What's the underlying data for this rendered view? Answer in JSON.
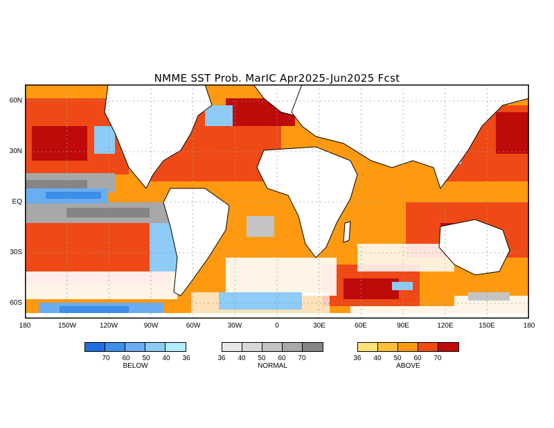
{
  "title": "NMME SST Prob. MarIC  Apr2025-Jun2025 Fcst",
  "map": {
    "lat_labels": [
      "60N",
      "30N",
      "EQ",
      "30S",
      "60S"
    ],
    "lon_labels": [
      "180",
      "150W",
      "120W",
      "90W",
      "60W",
      "30W",
      "0",
      "30E",
      "60E",
      "90E",
      "120E",
      "150E",
      "180"
    ]
  },
  "legend": {
    "below": {
      "caption": "BELOW",
      "ticks": [
        "70",
        "60",
        "50",
        "40",
        "36"
      ],
      "colors": [
        "#1f6fe0",
        "#3d8ee8",
        "#6aadf0",
        "#8ecbf7",
        "#b4ebfb"
      ]
    },
    "normal": {
      "caption": "NORMAL",
      "ticks": [
        "36",
        "40",
        "50",
        "60",
        "70"
      ],
      "colors": [
        "#e8e8e8",
        "#d8d8d8",
        "#c4c4c4",
        "#a8a8a8",
        "#858585"
      ]
    },
    "above": {
      "caption": "ABOVE",
      "ticks": [
        "36",
        "40",
        "50",
        "60",
        "70"
      ],
      "colors": [
        "#ffe27a",
        "#ffbe3a",
        "#ff9a10",
        "#ef4a16",
        "#bf0a0a"
      ]
    }
  }
}
